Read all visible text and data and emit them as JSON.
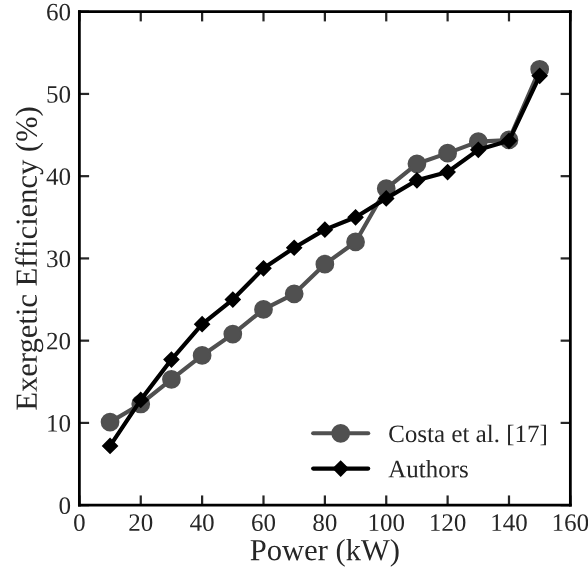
{
  "chart_data": {
    "type": "line",
    "xlabel": "Power (kW)",
    "ylabel": "Exergetic Efficiency (%)",
    "x": [
      10,
      20,
      30,
      40,
      50,
      60,
      70,
      80,
      90,
      100,
      110,
      120,
      130,
      140,
      150
    ],
    "series": [
      {
        "name": "Costa et al. [17]",
        "color": "#505050",
        "marker": "circle",
        "values": [
          10.1,
          12.3,
          15.3,
          18.2,
          20.8,
          23.8,
          25.7,
          29.3,
          32,
          38.5,
          41.5,
          42.8,
          44.2,
          44.4,
          53
        ]
      },
      {
        "name": "Authors",
        "color": "#000000",
        "marker": "diamond",
        "values": [
          7.2,
          12.8,
          17.7,
          22,
          25,
          28.8,
          31.3,
          33.5,
          35,
          37.3,
          39.5,
          40.5,
          43.2,
          44.3,
          52.2
        ]
      }
    ],
    "xlim": [
      0,
      160
    ],
    "xticks": [
      0,
      20,
      40,
      60,
      80,
      100,
      120,
      140,
      160
    ],
    "ylim": [
      0,
      60
    ],
    "yticks": [
      0,
      10,
      20,
      30,
      40,
      50,
      60
    ],
    "grid": false,
    "legend": "bottom right",
    "line_style": "solid"
  }
}
